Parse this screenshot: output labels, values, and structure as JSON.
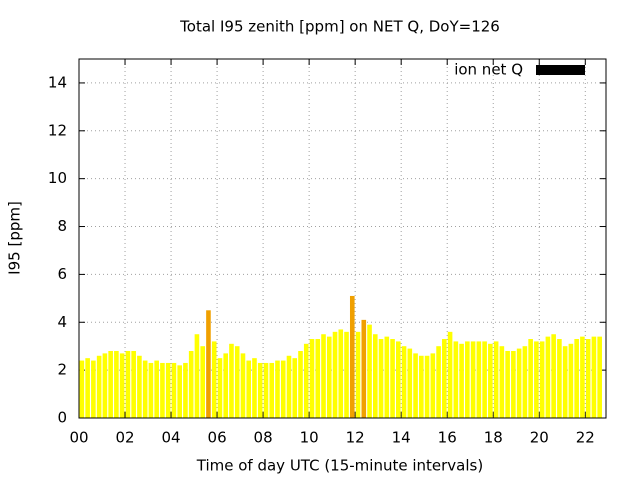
{
  "chart_data": {
    "type": "bar",
    "title": "Total I95 zenith [ppm] on NET Q, DoY=126",
    "xlabel": "Time of day UTC (15-minute intervals)",
    "ylabel": "I95 [ppm]",
    "xlim": [
      0,
      22.9
    ],
    "ylim": [
      0,
      15
    ],
    "xticks": [
      {
        "value": 0,
        "label": "00"
      },
      {
        "value": 2,
        "label": "02"
      },
      {
        "value": 4,
        "label": "04"
      },
      {
        "value": 6,
        "label": "06"
      },
      {
        "value": 8,
        "label": "08"
      },
      {
        "value": 10,
        "label": "10"
      },
      {
        "value": 12,
        "label": "12"
      },
      {
        "value": 14,
        "label": "14"
      },
      {
        "value": 16,
        "label": "16"
      },
      {
        "value": 18,
        "label": "18"
      },
      {
        "value": 20,
        "label": "20"
      },
      {
        "value": 22,
        "label": "22"
      }
    ],
    "yticks": [
      0,
      2,
      4,
      6,
      8,
      10,
      12,
      14
    ],
    "grid": true,
    "legend": "top-right",
    "series": [
      {
        "name": "ion net Q",
        "color": "#000000",
        "x": [
          0,
          0.25,
          0.5,
          0.75,
          1,
          1.25,
          1.5,
          1.75,
          2,
          2.25,
          2.5,
          2.75,
          3,
          3.25,
          3.5,
          3.75,
          4,
          4.25,
          4.5,
          4.75,
          5,
          5.25,
          5.5,
          5.75,
          6,
          6.25,
          6.5,
          6.75,
          7,
          7.25,
          7.5,
          7.75,
          8,
          8.25,
          8.5,
          8.75,
          9,
          9.25,
          9.5,
          9.75,
          10,
          10.25,
          10.5,
          10.75,
          11,
          11.25,
          11.5,
          11.75,
          12,
          12.25,
          12.5,
          12.75,
          13,
          13.25,
          13.5,
          13.75,
          14,
          14.25,
          14.5,
          14.75,
          15,
          15.25,
          15.5,
          15.75,
          16,
          16.25,
          16.5,
          16.75,
          17,
          17.25,
          17.5,
          17.75,
          18,
          18.25,
          18.5,
          18.75,
          19,
          19.25,
          19.5,
          19.75,
          20,
          20.25,
          20.5,
          20.75,
          21,
          21.25,
          21.5,
          21.75,
          22,
          22.25,
          22.5
        ],
        "values": [
          2.4,
          2.5,
          2.4,
          2.6,
          2.7,
          2.8,
          2.8,
          2.7,
          2.8,
          2.8,
          2.6,
          2.4,
          2.3,
          2.4,
          2.3,
          2.3,
          2.3,
          2.2,
          2.3,
          2.8,
          3.5,
          3.0,
          4.5,
          3.2,
          2.5,
          2.7,
          3.1,
          3.0,
          2.7,
          2.4,
          2.5,
          2.3,
          2.3,
          2.3,
          2.4,
          2.4,
          2.6,
          2.5,
          2.8,
          3.1,
          3.3,
          3.3,
          3.5,
          3.4,
          3.6,
          3.7,
          3.6,
          5.1,
          3.6,
          4.1,
          3.9,
          3.5,
          3.3,
          3.4,
          3.3,
          3.2,
          3.0,
          2.9,
          2.7,
          2.6,
          2.6,
          2.7,
          3.0,
          3.3,
          3.6,
          3.2,
          3.1,
          3.2,
          3.2,
          3.2,
          3.2,
          3.1,
          3.2,
          3.0,
          2.8,
          2.8,
          2.9,
          3.0,
          3.3,
          3.2,
          3.2,
          3.4,
          3.5,
          3.3,
          3.0,
          3.1,
          3.3,
          3.4,
          3.3,
          3.4,
          3.4
        ],
        "colors": [
          "#ffff00",
          "#ffff00",
          "#ffff00",
          "#ffff00",
          "#ffff00",
          "#ffff00",
          "#ffff00",
          "#ffff00",
          "#ffff00",
          "#ffff00",
          "#ffff00",
          "#ffff00",
          "#ffff00",
          "#ffff00",
          "#ffff00",
          "#ffff00",
          "#ffff00",
          "#ffff00",
          "#ffff00",
          "#ffff00",
          "#ffff00",
          "#ffff00",
          "#f0a000",
          "#ffff00",
          "#ffff00",
          "#ffff00",
          "#ffff00",
          "#ffff00",
          "#ffff00",
          "#ffff00",
          "#ffff00",
          "#ffff00",
          "#ffff00",
          "#ffff00",
          "#ffff00",
          "#ffff00",
          "#ffff00",
          "#ffff00",
          "#ffff00",
          "#ffff00",
          "#ffff00",
          "#ffff00",
          "#ffff00",
          "#ffff00",
          "#ffff00",
          "#ffff00",
          "#ffff00",
          "#f0a000",
          "#ffff00",
          "#f0a000",
          "#ffff00",
          "#ffff00",
          "#ffff00",
          "#ffff00",
          "#ffff00",
          "#ffff00",
          "#ffff00",
          "#ffff00",
          "#ffff00",
          "#ffff00",
          "#ffff00",
          "#ffff00",
          "#ffff00",
          "#ffff00",
          "#ffff00",
          "#ffff00",
          "#ffff00",
          "#ffff00",
          "#ffff00",
          "#ffff00",
          "#ffff00",
          "#ffff00",
          "#ffff00",
          "#ffff00",
          "#ffff00",
          "#ffff00",
          "#ffff00",
          "#ffff00",
          "#ffff00",
          "#ffff00",
          "#ffff00",
          "#ffff00",
          "#ffff00",
          "#ffff00",
          "#ffff00",
          "#ffff00",
          "#ffff00",
          "#ffff00",
          "#ffff00",
          "#ffff00",
          "#ffff00"
        ]
      }
    ]
  }
}
